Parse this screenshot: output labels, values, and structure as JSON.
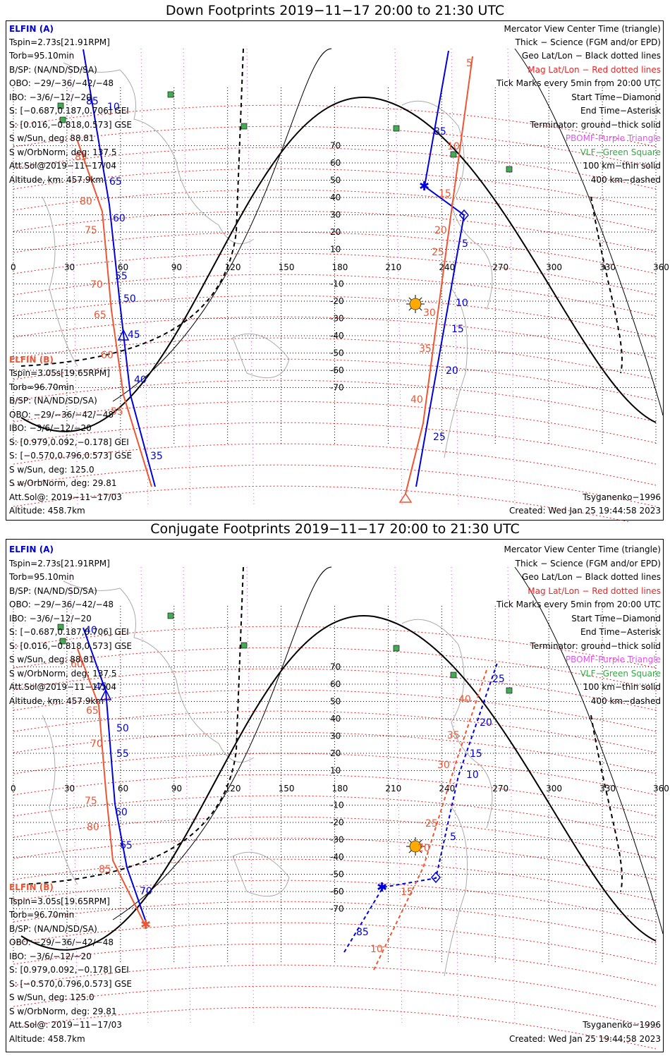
{
  "panels": [
    {
      "title": "Down Footprints 2019−11−17 20:00 to 21:30 UTC",
      "sat_a": {
        "name": "ELFIN (A)",
        "lines": [
          "Tspin=2.73s[21.91RPM]",
          "Torb=95.10min",
          "B/SP: (NA/ND/SD/SA)",
          "OBO: −29/−36/−42/−48",
          "IBO: −3/6/−12/−20",
          "S: [−0.687,0.187,0.706] GEI",
          "S: [0.016,−0.818,0.573] GSE",
          "S w/Sun, deg: 88.81",
          "S w/OrbNorm, deg: 137.5",
          "Att.Sol@2019−11−17/04",
          "Altitude, km: 457.9km"
        ]
      },
      "sat_b": {
        "name": "ELFIN (B)",
        "lines": [
          "Tspin=3.05s[19.65RPM]",
          "Torb=96.70min",
          "B/SP: (NA/ND/SD/SA)",
          "OBO: −29/−36/−42/−48",
          "IBO: −3/6/−12/−20",
          "S: [0.979,0.092,−0.178] GEI",
          "S: [−0.570,0.796,0.573] GSE",
          "S w/Sun, deg: 125.0",
          "S w/OrbNorm, deg: 29.81",
          "Att.Sol@: 2019−11−17/03",
          "Altitude: 458.7km"
        ]
      },
      "legend": [
        "Mercator View Center Time (triangle)",
        "Thick − Science (FGM and/or EPD)",
        "Geo Lat/Lon − Black dotted lines",
        "Mag Lat/Lon − Red dotted lines",
        "Tick Marks every 5min from 20:00 UTC",
        "Start Time−Diamond",
        "End Time−Asterisk",
        "Terminator: ground−thick solid",
        "PBOMF-Purple Triangle",
        "VLF−Green Square",
        "100 km−thin solid",
        "400 km−dashed"
      ],
      "model": "Tsyganenko−1996",
      "created": "Created: Wed Jan 25 19:44:58 2023"
    },
    {
      "title": "Conjugate Footprints 2019−11−17 20:00 to 21:30 UTC",
      "sat_a": {
        "name": "ELFIN (A)",
        "lines": [
          "Tspin=2.73s[21.91RPM]",
          "Torb=95.10min",
          "B/SP: (NA/ND/SD/SA)",
          "OBO: −29/−36/−42/−48",
          "IBO: −3/6/−12/−20",
          "S: [−0.687,0.187,0.706] GEI",
          "S: [0.016,−0.818,0.573] GSE",
          "S w/Sun, deg: 88.81",
          "S w/OrbNorm, deg: 137.5",
          "Att.Sol@2019−11−17/04",
          "Altitude, km: 457.9km"
        ]
      },
      "sat_b": {
        "name": "ELFIN (B)",
        "lines": [
          "Tspin=3.05s[19.65RPM]",
          "Torb=96.70min",
          "B/SP: (NA/ND/SD/SA)",
          "OBO: −29/−36/−42/−48",
          "IBO: −3/6/−12/−20",
          "S: [0.979,0.092,−0.178] GEI",
          "S: [−0.570,0.796,0.573] GSE",
          "S w/Sun, deg: 125.0",
          "S w/OrbNorm, deg: 29.81",
          "Att.Sol@: 2019−11−17/03",
          "Altitude: 458.7km"
        ]
      },
      "legend": [
        "Mercator View Center Time (triangle)",
        "Thick − Science (FGM and/or EPD)",
        "Geo Lat/Lon − Black dotted lines",
        "Mag Lat/Lon − Red dotted lines",
        "Tick Marks every 5min from 20:00 UTC",
        "Start Time−Diamond",
        "End Time−Asterisk",
        "Terminator: ground−thick solid",
        "PBOMF-Purple Triangle",
        "VLF−Green Square",
        "100 km−thin solid",
        "400 km−dashed"
      ],
      "model": "Tsyganenko−1996",
      "created": "Created: Wed Jan 25 19:44:58 2023"
    }
  ],
  "map": {
    "lon_labels": [
      "0",
      "30",
      "60",
      "90",
      "120",
      "150",
      "180",
      "210",
      "240",
      "270",
      "300",
      "330",
      "360"
    ],
    "lat_labels": [
      "70",
      "60",
      "50",
      "40",
      "30",
      "20",
      "10",
      "-10",
      "-20",
      "-30",
      "-40",
      "-50",
      "-60",
      "-70"
    ],
    "panel1_tracks": {
      "a_ticks": [
        "85",
        "10",
        "65",
        "60",
        "55",
        "50",
        "45",
        "40",
        "35"
      ],
      "b_ticks": [
        "85",
        "80",
        "75",
        "70",
        "65",
        "60",
        "55"
      ],
      "a2_ticks": [
        "85",
        "5",
        "10",
        "15",
        "20",
        "25"
      ],
      "b2_ticks": [
        "5",
        "10",
        "15",
        "20",
        "25",
        "30",
        "35",
        "40"
      ]
    },
    "panel2_tracks": {
      "a_ticks": [
        "40",
        "45",
        "50",
        "55",
        "60",
        "65",
        "70"
      ],
      "b_ticks": [
        "60",
        "65",
        "70",
        "75",
        "80",
        "85"
      ],
      "a2_ticks": [
        "85",
        "5",
        "10",
        "15",
        "20",
        "25"
      ],
      "b2_ticks": [
        "10",
        "15",
        "20",
        "25",
        "30",
        "35",
        "40"
      ]
    }
  },
  "colors": {
    "sat_a": "#0000dd",
    "sat_b": "#ee5533",
    "mag_grid": "#ee2222",
    "geo_grid": "#000000",
    "pbomf": "#dd55ee",
    "vlf": "#44aa55",
    "sun": "#ffaa00",
    "coast": "#aaaaaa"
  }
}
